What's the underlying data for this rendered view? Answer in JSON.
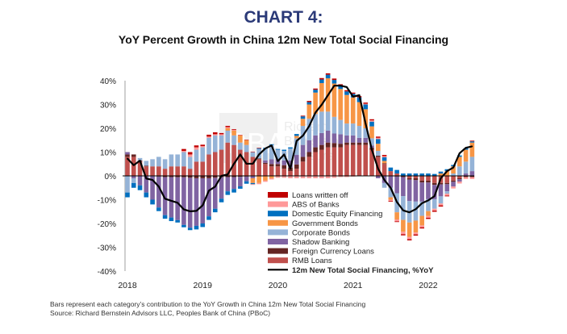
{
  "header": {
    "title": "CHART 4:",
    "subtitle": "YoY Percent Growth in China 12m New Total Social Financing"
  },
  "watermark": "RBA Richard Bernstein Advisors",
  "footer": {
    "note": "Bars represent each category’s contribution to the YoY Growth in China 12m New Total Social Financing",
    "source": "Source: Richard Bernstein Advisors LLC, Peoples Bank of China (PBoC)"
  },
  "chart_data": {
    "type": "bar",
    "stacked": true,
    "title": "YoY Percent Growth in China 12m New Total Social Financing",
    "xlabel": "",
    "ylabel": "",
    "ylim": [
      -40,
      40
    ],
    "yticks": [
      "-40%",
      "-30%",
      "-20%",
      "-10%",
      "0%",
      "10%",
      "20%",
      "30%",
      "40%"
    ],
    "ytick_values": [
      -40,
      -30,
      -20,
      -10,
      0,
      10,
      20,
      30,
      40
    ],
    "xticks": [
      "2018",
      "2019",
      "2020",
      "2021",
      "2022"
    ],
    "xtick_month_index": [
      0,
      12,
      24,
      36,
      48
    ],
    "period": "monthly, Jan 2018 - Aug 2022",
    "legend_placement": "bottom-center",
    "series": [
      {
        "name": "RMB Loans",
        "color": "#c0504d",
        "values": [
          8,
          8,
          6,
          4,
          4,
          4,
          3,
          4,
          4,
          4,
          3,
          6,
          6,
          9,
          10,
          11,
          14,
          13,
          11,
          10,
          8,
          7,
          5,
          4,
          4,
          3,
          2,
          3,
          6,
          8,
          10,
          11,
          12,
          12,
          12,
          13,
          13,
          13,
          13,
          11,
          8,
          5,
          2,
          1,
          0,
          -1,
          -1,
          -2,
          -2,
          -3,
          -3,
          -3,
          -2,
          -1,
          0,
          0
        ]
      },
      {
        "name": "Foreign Currency Loans",
        "color": "#632523",
        "values": [
          1,
          1,
          0.5,
          0.3,
          0,
          -0.3,
          -0.5,
          -0.5,
          -0.6,
          -0.6,
          -0.8,
          -1,
          -1,
          -1,
          -0.8,
          -0.6,
          -0.5,
          -0.5,
          -0.4,
          -0.3,
          0,
          0.3,
          0.5,
          1,
          1,
          1.5,
          1.5,
          1.8,
          2,
          2,
          2,
          2,
          2,
          1.8,
          1.5,
          1,
          1,
          1,
          1,
          0.8,
          0.5,
          0.3,
          0,
          -0.3,
          -0.5,
          -0.6,
          -0.8,
          -0.8,
          -0.8,
          -0.8,
          -0.6,
          -0.5,
          -0.5,
          -0.4,
          -0.5,
          -0.5
        ]
      },
      {
        "name": "Shadow Banking",
        "color": "#8064a2",
        "values": [
          1,
          -1,
          -4,
          -7,
          -10,
          -13,
          -16,
          -17,
          -18,
          -20,
          -21,
          -20,
          -19,
          -16,
          -13,
          -9,
          -6,
          -5,
          -4,
          -2,
          -1,
          0,
          1,
          2,
          2,
          2,
          3,
          4,
          5,
          5,
          5,
          5,
          5,
          4,
          4,
          3,
          3,
          2,
          2,
          1,
          -1,
          -3,
          -5,
          -7,
          -8,
          -9,
          -9,
          -8,
          -7,
          -6,
          -5,
          -3,
          -2,
          -1,
          1,
          2
        ]
      },
      {
        "name": "Corporate Bonds",
        "color": "#95b3d7",
        "values": [
          -7,
          -2,
          1,
          2,
          3,
          4,
          4,
          5,
          5,
          6,
          5,
          5,
          6,
          7,
          7,
          6,
          5,
          4,
          3,
          3,
          2,
          4,
          5,
          6,
          4,
          4,
          5,
          7,
          8,
          9,
          9,
          9,
          8,
          7,
          6,
          5,
          5,
          5,
          4,
          3,
          2,
          -2,
          -4,
          -8,
          -10,
          -9,
          -8,
          -6,
          -5,
          -4,
          -3,
          -1,
          1,
          4,
          5,
          6
        ]
      },
      {
        "name": "Government Bonds",
        "color": "#f79646",
        "values": [
          0,
          0,
          0,
          0,
          0,
          0,
          0,
          0,
          0,
          0,
          0,
          0,
          0,
          0,
          0,
          0,
          1,
          2,
          3,
          2,
          -2,
          -3,
          -2,
          -1,
          0,
          0,
          0,
          1,
          3,
          6,
          9,
          12,
          14,
          14,
          13,
          12,
          11,
          10,
          8,
          5,
          3,
          1,
          -1,
          -3,
          -5,
          -6,
          -5,
          -4,
          -2,
          0,
          1,
          2,
          3,
          4,
          5,
          6
        ]
      },
      {
        "name": "Domestic Equity Financing",
        "color": "#0070c0",
        "values": [
          -2,
          -2,
          -2,
          -2,
          -2,
          -1.5,
          -1.5,
          -1.5,
          -1,
          -1,
          -1,
          -1.5,
          -1.5,
          -1.5,
          -1.5,
          -1.5,
          -1.5,
          -1.5,
          -1,
          -1,
          -0.5,
          0.3,
          0.3,
          0.3,
          0.3,
          0.5,
          0.5,
          0.8,
          1,
          1,
          1.2,
          1.5,
          1.5,
          1.5,
          1.5,
          1.5,
          1.5,
          2,
          2,
          2,
          2,
          1.5,
          1.5,
          1.5,
          1,
          1,
          1,
          1,
          1,
          0.8,
          0.8,
          0.8,
          0.6,
          0.6,
          0.6,
          0.5
        ]
      },
      {
        "name": "ABS of Banks",
        "color": "#ff9999",
        "values": [
          0,
          0,
          0,
          0,
          0,
          0,
          0,
          0,
          0,
          0.5,
          1,
          1,
          0.5,
          0.5,
          0.5,
          0.5,
          0.5,
          0.3,
          0,
          0,
          -0.3,
          -0.5,
          -0.5,
          -0.5,
          -0.8,
          -0.8,
          -1,
          -1,
          -1,
          -1,
          -1,
          -1,
          -1,
          -0.8,
          -0.5,
          -0.5,
          -0.3,
          0,
          0.3,
          0.5,
          0.5,
          0.5,
          -0.5,
          -0.8,
          -1,
          -1,
          -0.8,
          -0.8,
          -0.8,
          -0.8,
          -0.8,
          -0.8,
          -0.8,
          -0.8,
          -0.8,
          -0.8
        ]
      },
      {
        "name": "Loans written off",
        "color": "#c00000",
        "values": [
          0,
          0,
          0,
          0,
          0,
          0,
          0,
          0,
          0,
          0.8,
          1,
          0.8,
          0.6,
          0.8,
          0.8,
          0.5,
          0.5,
          0.3,
          0.2,
          0.2,
          0.2,
          0.2,
          0,
          0,
          0,
          0,
          0,
          0,
          0.3,
          0.5,
          0.5,
          0.6,
          0.6,
          0.6,
          0.5,
          0.5,
          0.5,
          0.5,
          0.5,
          0.5,
          0.5,
          0.5,
          -0.3,
          -0.3,
          -0.5,
          -0.5,
          -0.5,
          -0.5,
          -0.5,
          -0.5,
          -0.5,
          -0.3,
          0,
          0,
          0,
          0.3
        ]
      }
    ],
    "line": {
      "name": "12m New Total Social Financing, %YoY",
      "color": "#000000",
      "values": [
        7.3,
        4.5,
        6.4,
        -1.1,
        -1.7,
        -4.5,
        -9.6,
        -10.5,
        -11.3,
        -14.1,
        -14.9,
        -14.7,
        -12.4,
        -6.2,
        -4.5,
        0,
        0.6,
        5.1,
        9.0,
        5.1,
        5.1,
        9.0,
        11.5,
        12.8,
        6.2,
        9.0,
        3.1,
        14.7,
        16.9,
        20.9,
        26.6,
        29.9,
        33.9,
        37.9,
        37.9,
        37.3,
        33.3,
        33.9,
        22,
        11,
        3,
        -1.7,
        -5,
        -11,
        -14.5,
        -15.3,
        -14,
        -11.5,
        -10.3,
        -8.5,
        -1,
        2,
        3.5,
        9.5,
        11.8,
        12.4
      ]
    }
  }
}
